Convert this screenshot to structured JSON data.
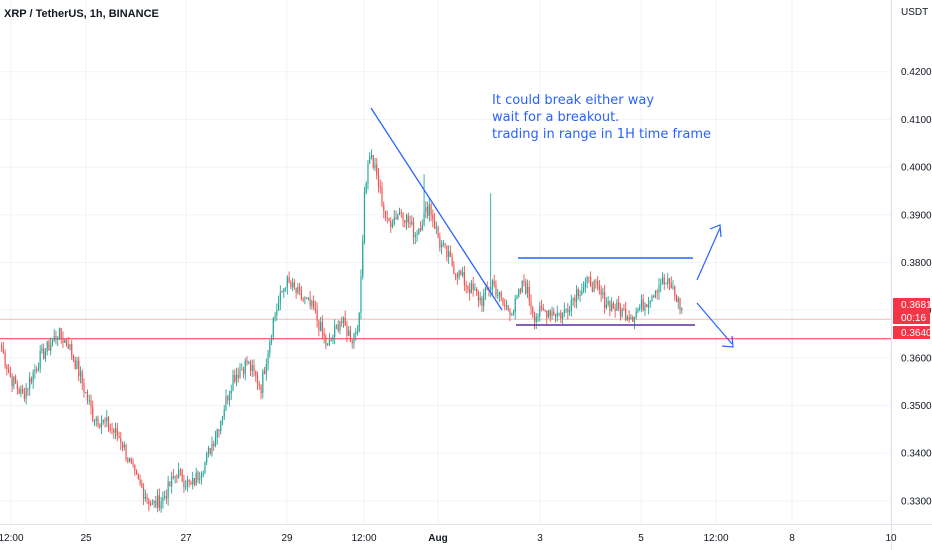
{
  "header": {
    "title": "XRP / TetherUS, 1h, BINANCE"
  },
  "chart_data": {
    "type": "candlestick",
    "title": "XRP / TetherUS, 1h, BINANCE",
    "y_unit": "USDT",
    "ylim": [
      0.326,
      0.43
    ],
    "y_ticks": [
      "0.4200",
      "0.4100",
      "0.4000",
      "0.3900",
      "0.3800",
      "0.3700",
      "0.3600",
      "0.3500",
      "0.3400",
      "0.3300"
    ],
    "x_ticks": [
      "12:00",
      "25",
      "27",
      "29",
      "12:00",
      "Aug",
      "3",
      "5",
      "12:00",
      "8",
      "10"
    ],
    "x_tick_bold": [
      "Aug"
    ],
    "price_tags": [
      {
        "label": "0.3681",
        "value": 0.3681,
        "color": "#f23645"
      },
      {
        "label": "00:16",
        "value": 0.3666,
        "color": "#f23645"
      },
      {
        "label": "0.3640",
        "value": 0.364,
        "color": "#f23645"
      }
    ],
    "horizontal_lines": [
      {
        "name": "support-line-red",
        "value": 0.364,
        "color": "#f23645"
      },
      {
        "name": "last-price-line",
        "value": 0.3681,
        "color": "#f5b5b9"
      }
    ],
    "annotation": {
      "lines": [
        "It could break either way",
        "wait for a breakout.",
        "trading in range in 1H time frame"
      ],
      "color": "#2962ff"
    },
    "colors": {
      "up": "#26a69a",
      "down": "#ef5350",
      "drawing": "#2962ff",
      "range_bottom": "#5b2d9a"
    },
    "waypoints": [
      [
        0,
        0.362
      ],
      [
        5,
        0.356
      ],
      [
        12,
        0.352
      ],
      [
        22,
        0.36
      ],
      [
        32,
        0.365
      ],
      [
        38,
        0.363
      ],
      [
        44,
        0.357
      ],
      [
        52,
        0.348
      ],
      [
        60,
        0.346
      ],
      [
        68,
        0.343
      ],
      [
        76,
        0.335
      ],
      [
        86,
        0.329
      ],
      [
        92,
        0.3305
      ],
      [
        100,
        0.336
      ],
      [
        108,
        0.333
      ],
      [
        116,
        0.338
      ],
      [
        124,
        0.346
      ],
      [
        132,
        0.356
      ],
      [
        140,
        0.359
      ],
      [
        148,
        0.354
      ],
      [
        155,
        0.368
      ],
      [
        162,
        0.376
      ],
      [
        170,
        0.373
      ],
      [
        178,
        0.37
      ],
      [
        186,
        0.362
      ],
      [
        193,
        0.368
      ],
      [
        200,
        0.364
      ],
      [
        204,
        0.368
      ],
      [
        207,
        0.395
      ],
      [
        210,
        0.403
      ],
      [
        214,
        0.398
      ],
      [
        220,
        0.388
      ],
      [
        228,
        0.391
      ],
      [
        236,
        0.386
      ],
      [
        244,
        0.392
      ],
      [
        250,
        0.384
      ],
      [
        258,
        0.379
      ],
      [
        266,
        0.375
      ],
      [
        274,
        0.372
      ],
      [
        280,
        0.376
      ],
      [
        286,
        0.371
      ],
      [
        292,
        0.37
      ],
      [
        298,
        0.376
      ],
      [
        304,
        0.369
      ],
      [
        312,
        0.37
      ],
      [
        320,
        0.369
      ],
      [
        328,
        0.374
      ],
      [
        336,
        0.376
      ],
      [
        344,
        0.372
      ],
      [
        352,
        0.37
      ],
      [
        360,
        0.369
      ],
      [
        368,
        0.372
      ],
      [
        376,
        0.376
      ],
      [
        382,
        0.375
      ],
      [
        388,
        0.37
      ]
    ],
    "spikes": [
      {
        "index": 279,
        "high": 0.3945
      },
      {
        "index": 241,
        "high": 0.3985
      }
    ]
  }
}
